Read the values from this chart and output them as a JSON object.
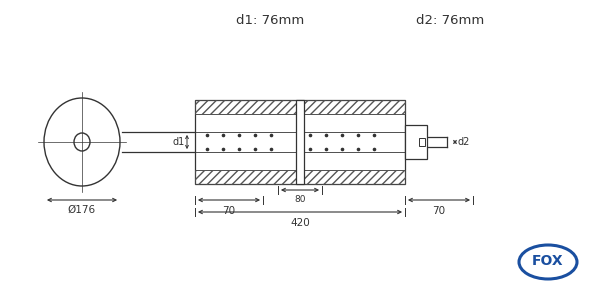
{
  "bg_color": "#ffffff",
  "line_color": "#333333",
  "hatch_color": "#555555",
  "label_d1": "d1: 76mm",
  "label_d2": "d2: 76mm",
  "label_dia": "Ø176",
  "label_d1_arrow": "d1",
  "label_d2_arrow": "d2",
  "label_70_left": "70",
  "label_420": "420",
  "label_70_right": "70",
  "label_80": "80",
  "fox_text": "FOX",
  "fox_color": "#1a4fa0",
  "dim_fontsize": 7.5,
  "label_fontsize": 9.5,
  "arrow_fontsize": 7
}
